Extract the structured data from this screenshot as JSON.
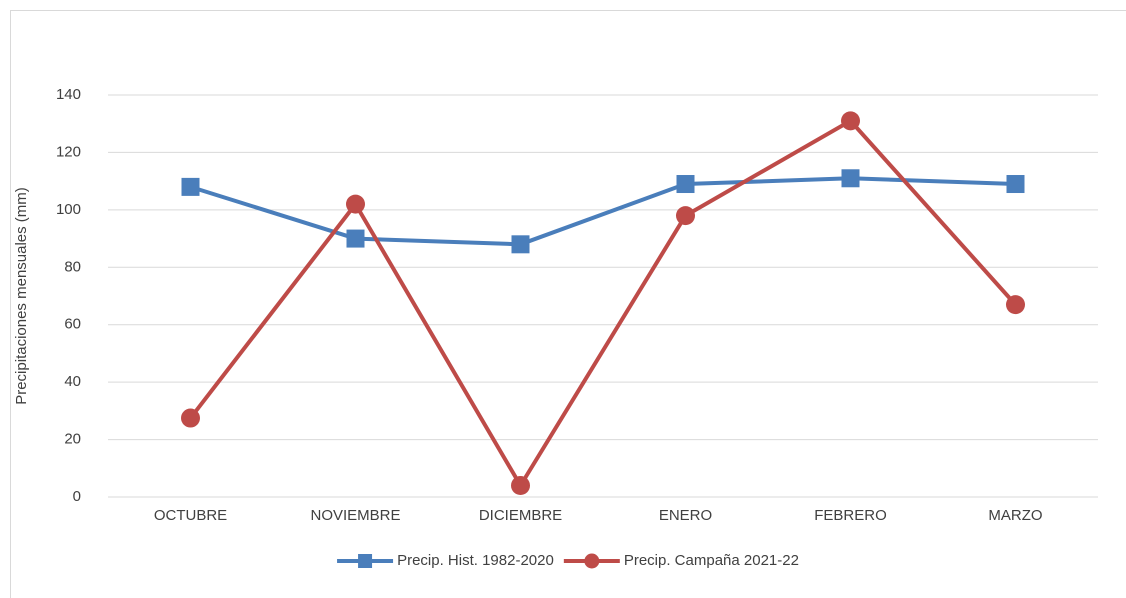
{
  "chart_data": {
    "type": "line",
    "y_label": "Precipitaciones mensuales (mm)",
    "categories": [
      "OCTUBRE",
      "NOVIEMBRE",
      "DICIEMBRE",
      "ENERO",
      "FEBRERO",
      "MARZO"
    ],
    "series": [
      {
        "name": "Precip. Hist. 1982-2020",
        "color": "#4a7ebb",
        "marker": "square",
        "values": [
          108,
          90,
          88,
          109,
          111,
          109
        ]
      },
      {
        "name": "Precip. Campaña 2021-22",
        "color": "#be4b48",
        "marker": "circle",
        "values": [
          27.5,
          102,
          4,
          98,
          131,
          67
        ]
      }
    ],
    "ylim": [
      0,
      140
    ],
    "yticks": [
      0,
      20,
      40,
      60,
      80,
      100,
      120,
      140
    ],
    "grid": true,
    "legend": "bottom"
  }
}
